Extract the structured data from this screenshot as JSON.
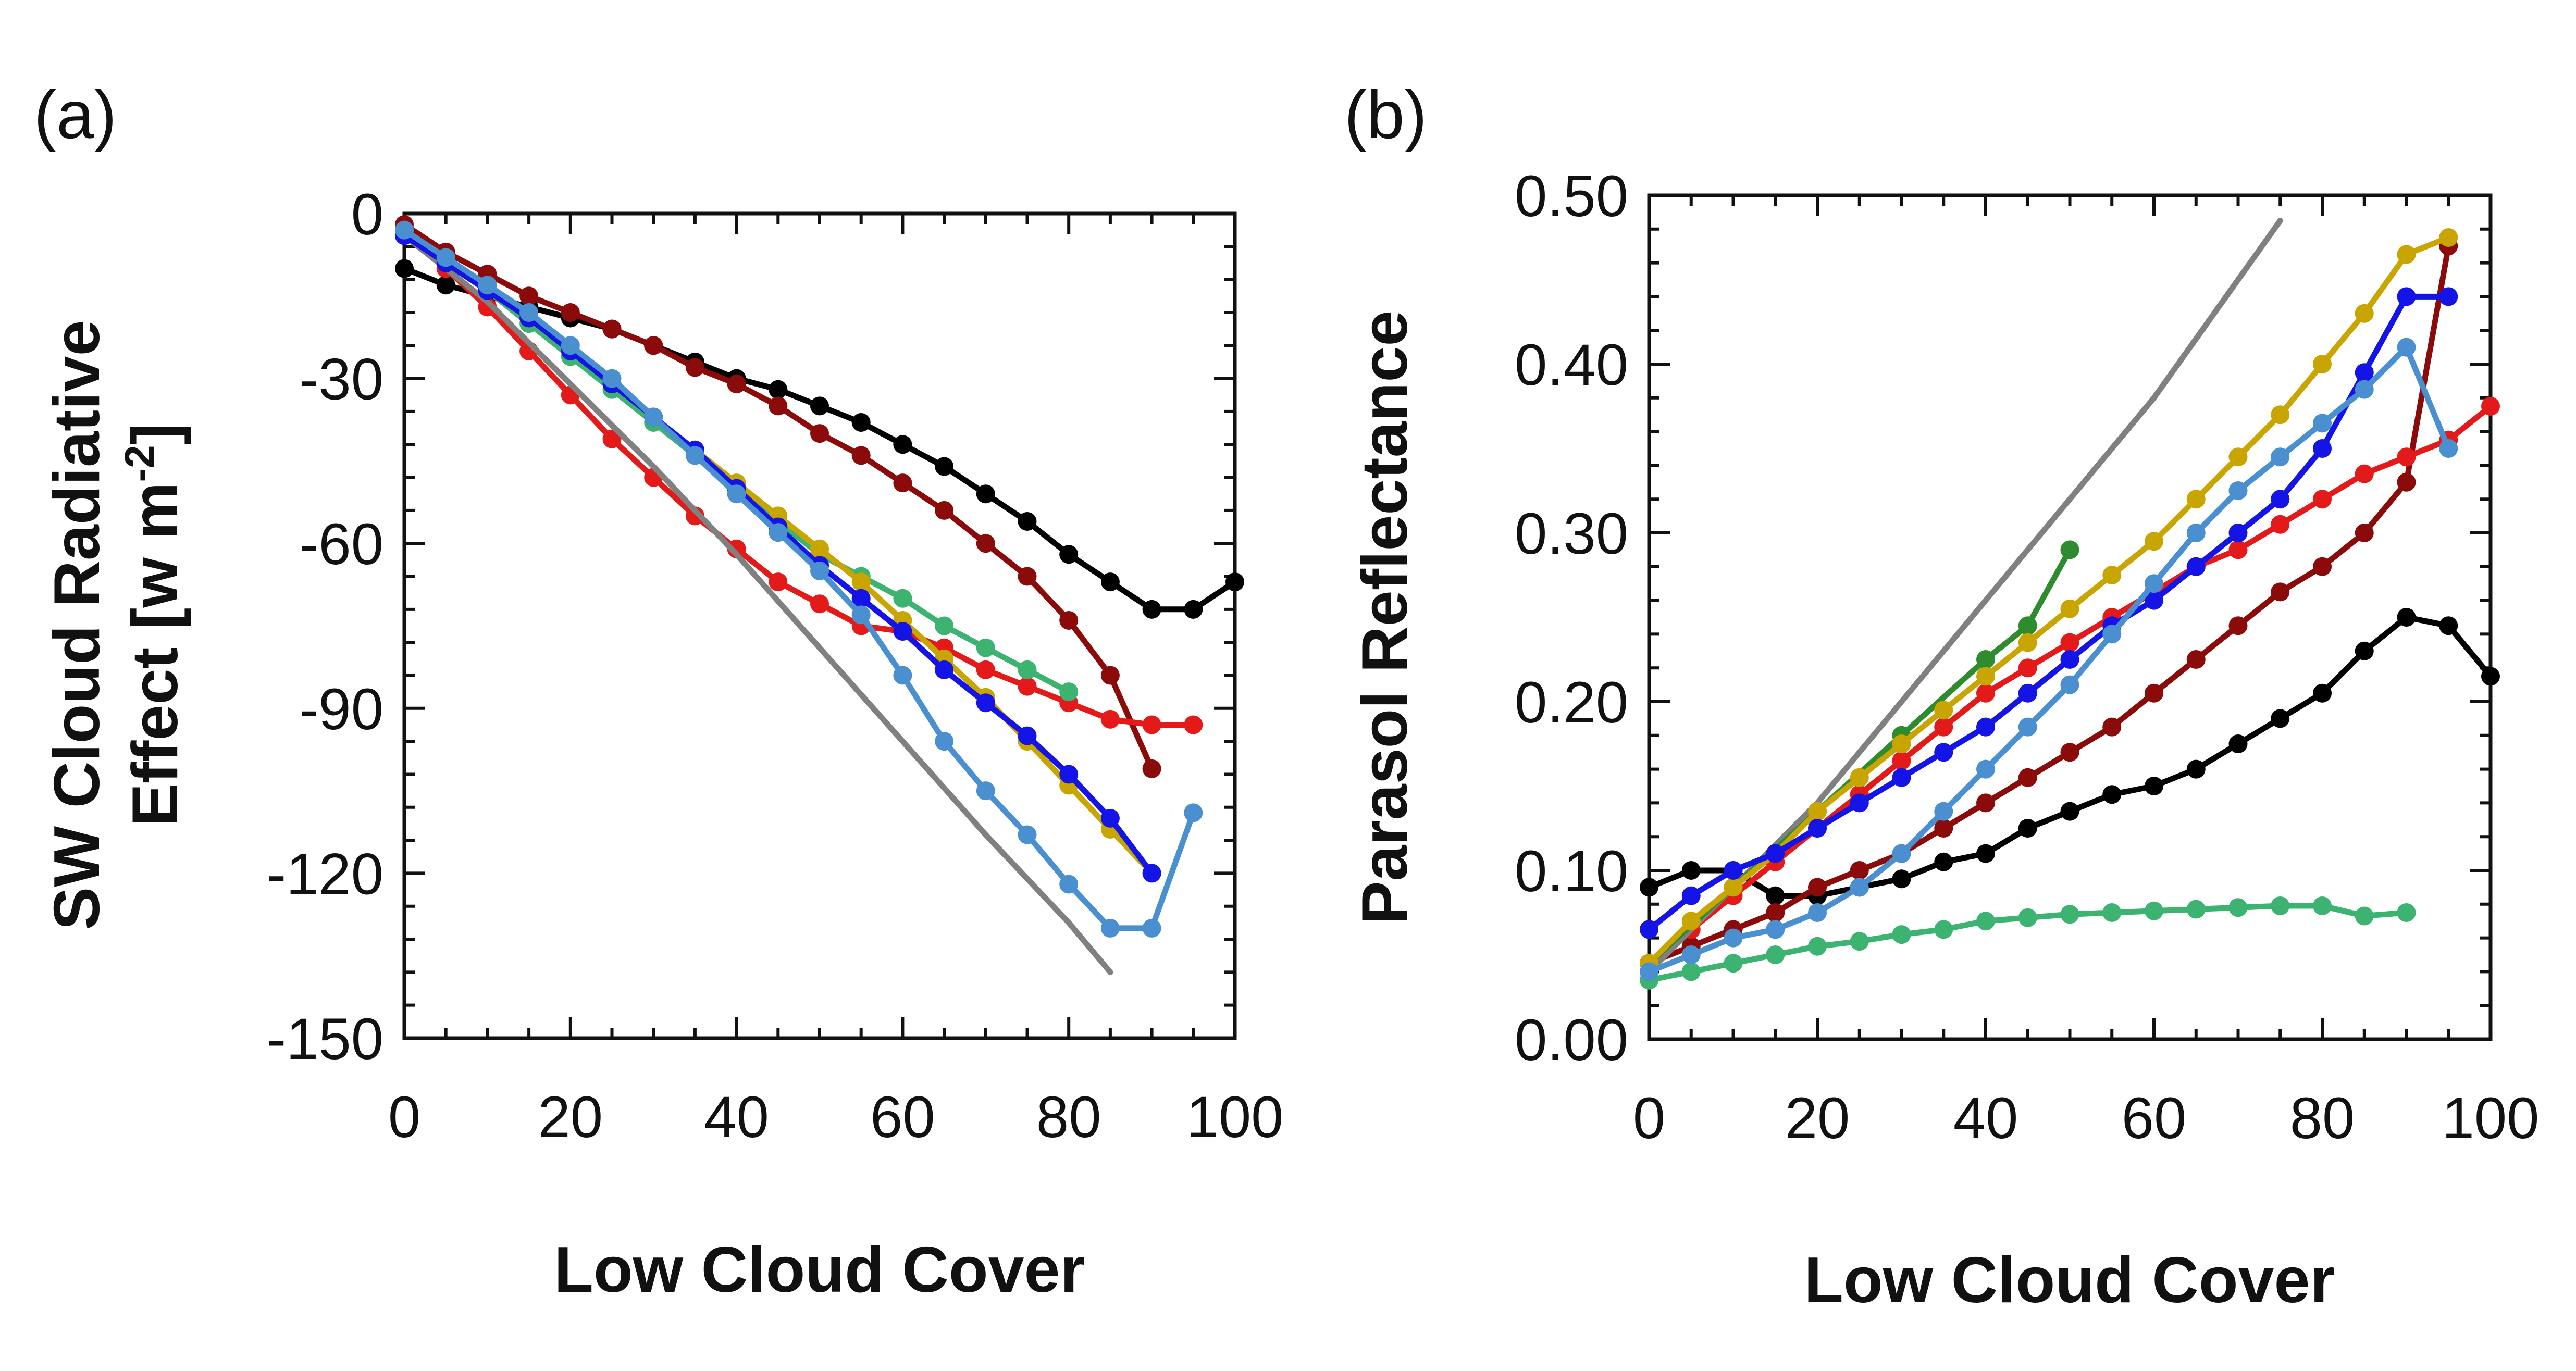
{
  "chart_data": [
    {
      "type": "line",
      "panel_label": "(a)",
      "xlabel": "Low Cloud Cover",
      "ylabel": "SW Cloud Radiative Effect [w m",
      "ylabel_sup": "-2",
      "ylabel_close": "]",
      "xlim": [
        0,
        100
      ],
      "ylim": [
        -150,
        0
      ],
      "xticks": [
        0,
        20,
        40,
        60,
        80,
        100
      ],
      "yticks": [
        0,
        -30,
        -60,
        -90,
        -120,
        -150
      ],
      "xtick_labels": [
        "0",
        "20",
        "40",
        "60",
        "80",
        "100"
      ],
      "ytick_labels": [
        "0",
        "-30",
        "-60",
        "-90",
        "-120",
        "-150"
      ],
      "grid": false,
      "series": [
        {
          "color": "#000000",
          "markers": true,
          "x": [
            0,
            5,
            10,
            15,
            20,
            25,
            30,
            35,
            40,
            45,
            50,
            55,
            60,
            65,
            70,
            75,
            80,
            85,
            90,
            95,
            100
          ],
          "y": [
            -10,
            -13,
            -15,
            -17,
            -19,
            -21,
            -24,
            -27,
            -30,
            -32,
            -35,
            -38,
            -42,
            -46,
            -51,
            -56,
            -62,
            -67,
            -72,
            -72,
            -67
          ]
        },
        {
          "color": "#8B0A0A",
          "markers": true,
          "x": [
            0,
            5,
            10,
            15,
            20,
            25,
            30,
            35,
            40,
            45,
            50,
            55,
            60,
            65,
            70,
            75,
            80,
            85,
            90
          ],
          "y": [
            -2,
            -7,
            -11,
            -15,
            -18,
            -21,
            -24,
            -28,
            -31,
            -35,
            -40,
            -44,
            -49,
            -54,
            -60,
            -66,
            -74,
            -84,
            -101
          ]
        },
        {
          "color": "#E41A1A",
          "markers": true,
          "x": [
            0,
            5,
            10,
            15,
            20,
            25,
            30,
            35,
            40,
            45,
            50,
            55,
            60,
            65,
            70,
            75,
            80,
            85,
            90,
            95
          ],
          "y": [
            -3,
            -10,
            -17,
            -25,
            -33,
            -41,
            -48,
            -55,
            -61,
            -67,
            -71,
            -75,
            -76,
            -79,
            -83,
            -86,
            -89,
            -92,
            -93,
            -93
          ]
        },
        {
          "color": "#808080",
          "markers": false,
          "x": [
            0,
            10,
            20,
            30,
            40,
            50,
            60,
            70,
            80,
            85
          ],
          "y": [
            -4,
            -16,
            -31,
            -46,
            -62,
            -79,
            -96,
            -113,
            -129,
            -138
          ]
        },
        {
          "color": "#3CB371",
          "markers": true,
          "x": [
            0,
            5,
            10,
            15,
            20,
            25,
            30,
            35,
            40,
            45,
            50,
            55,
            60,
            65,
            70,
            75,
            80
          ],
          "y": [
            -4,
            -9,
            -14,
            -20,
            -26,
            -32,
            -38,
            -44,
            -50,
            -56,
            -62,
            -66,
            -70,
            -75,
            -79,
            -83,
            -87
          ]
        },
        {
          "color": "#C8A500",
          "markers": true,
          "x": [
            0,
            5,
            10,
            15,
            20,
            25,
            30,
            35,
            40,
            45,
            50,
            55,
            60,
            65,
            70,
            75,
            80,
            85,
            90
          ],
          "y": [
            -4,
            -9,
            -14,
            -19,
            -25,
            -31,
            -37,
            -43,
            -49,
            -55,
            -61,
            -67,
            -74,
            -81,
            -88,
            -96,
            -104,
            -112,
            -120
          ]
        },
        {
          "color": "#1414E6",
          "markers": true,
          "x": [
            0,
            5,
            10,
            15,
            20,
            25,
            30,
            35,
            40,
            45,
            50,
            55,
            60,
            65,
            70,
            75,
            80,
            85,
            90
          ],
          "y": [
            -4,
            -9,
            -14,
            -19,
            -25,
            -31,
            -37,
            -43,
            -50,
            -57,
            -64,
            -70,
            -76,
            -83,
            -89,
            -95,
            -102,
            -110,
            -120
          ]
        },
        {
          "color": "#4A8FD0",
          "markers": true,
          "x": [
            0,
            5,
            10,
            15,
            20,
            25,
            30,
            35,
            40,
            45,
            50,
            55,
            60,
            65,
            70,
            75,
            80,
            85,
            90,
            95
          ],
          "y": [
            -3,
            -8,
            -13,
            -18,
            -24,
            -30,
            -37,
            -44,
            -51,
            -58,
            -65,
            -73,
            -84,
            -96,
            -105,
            -113,
            -122,
            -130,
            -130,
            -109
          ]
        }
      ]
    },
    {
      "type": "line",
      "panel_label": "(b)",
      "xlabel": "Low Cloud Cover",
      "ylabel": "Parasol Reflectance",
      "xlim": [
        0,
        100
      ],
      "ylim": [
        0,
        0.5
      ],
      "xticks": [
        0,
        20,
        40,
        60,
        80,
        100
      ],
      "yticks": [
        0,
        0.1,
        0.2,
        0.3,
        0.4,
        0.5
      ],
      "xtick_labels": [
        "0",
        "20",
        "40",
        "60",
        "80",
        "100"
      ],
      "ytick_labels": [
        "0.00",
        "0.10",
        "0.20",
        "0.30",
        "0.40",
        "0.50"
      ],
      "grid": false,
      "series": [
        {
          "color": "#000000",
          "markers": true,
          "x": [
            0,
            5,
            10,
            15,
            20,
            25,
            30,
            35,
            40,
            45,
            50,
            55,
            60,
            65,
            70,
            75,
            80,
            85,
            90,
            95,
            100
          ],
          "y": [
            0.09,
            0.1,
            0.1,
            0.085,
            0.085,
            0.09,
            0.095,
            0.105,
            0.11,
            0.125,
            0.135,
            0.145,
            0.15,
            0.16,
            0.175,
            0.19,
            0.205,
            0.23,
            0.25,
            0.245,
            0.215
          ]
        },
        {
          "color": "#8B0A0A",
          "markers": true,
          "x": [
            0,
            5,
            10,
            15,
            20,
            25,
            30,
            35,
            40,
            45,
            50,
            55,
            60,
            65,
            70,
            75,
            80,
            85,
            90,
            95
          ],
          "y": [
            0.045,
            0.055,
            0.065,
            0.075,
            0.09,
            0.1,
            0.11,
            0.125,
            0.14,
            0.155,
            0.17,
            0.185,
            0.205,
            0.225,
            0.245,
            0.265,
            0.28,
            0.3,
            0.33,
            0.47
          ]
        },
        {
          "color": "#E41A1A",
          "markers": true,
          "x": [
            0,
            5,
            10,
            15,
            20,
            25,
            30,
            35,
            40,
            45,
            50,
            55,
            60,
            65,
            70,
            75,
            80,
            85,
            90,
            95,
            100
          ],
          "y": [
            0.045,
            0.065,
            0.085,
            0.105,
            0.125,
            0.145,
            0.165,
            0.185,
            0.205,
            0.22,
            0.235,
            0.25,
            0.265,
            0.28,
            0.29,
            0.305,
            0.32,
            0.335,
            0.345,
            0.355,
            0.375
          ]
        },
        {
          "color": "#808080",
          "markers": false,
          "x": [
            0,
            10,
            20,
            30,
            40,
            50,
            60,
            70,
            75
          ],
          "y": [
            0.04,
            0.09,
            0.14,
            0.2,
            0.26,
            0.32,
            0.38,
            0.45,
            0.485
          ]
        },
        {
          "color": "#3CB371",
          "markers": true,
          "x": [
            0,
            5,
            10,
            15,
            20,
            25,
            30,
            35,
            40,
            45,
            50,
            55,
            60,
            65,
            70,
            75,
            80,
            85,
            90
          ],
          "y": [
            0.035,
            0.04,
            0.045,
            0.05,
            0.055,
            0.058,
            0.062,
            0.065,
            0.07,
            0.072,
            0.074,
            0.075,
            0.076,
            0.077,
            0.078,
            0.079,
            0.079,
            0.073,
            0.075
          ]
        },
        {
          "color": "#2E8B2E",
          "markers": true,
          "x": [
            0,
            10,
            20,
            30,
            40,
            45,
            50
          ],
          "y": [
            0.045,
            0.09,
            0.135,
            0.18,
            0.225,
            0.245,
            0.29
          ]
        },
        {
          "color": "#C8A500",
          "markers": true,
          "x": [
            0,
            5,
            10,
            15,
            20,
            25,
            30,
            35,
            40,
            45,
            50,
            55,
            60,
            65,
            70,
            75,
            80,
            85,
            90,
            95
          ],
          "y": [
            0.045,
            0.07,
            0.09,
            0.11,
            0.135,
            0.155,
            0.175,
            0.195,
            0.215,
            0.235,
            0.255,
            0.275,
            0.295,
            0.32,
            0.345,
            0.37,
            0.4,
            0.43,
            0.465,
            0.475
          ]
        },
        {
          "color": "#1414E6",
          "markers": true,
          "x": [
            0,
            5,
            10,
            15,
            20,
            25,
            30,
            35,
            40,
            45,
            50,
            55,
            60,
            65,
            70,
            75,
            80,
            85,
            90,
            95
          ],
          "y": [
            0.065,
            0.085,
            0.1,
            0.11,
            0.125,
            0.14,
            0.155,
            0.17,
            0.185,
            0.205,
            0.225,
            0.245,
            0.26,
            0.28,
            0.3,
            0.32,
            0.35,
            0.395,
            0.44,
            0.44
          ]
        },
        {
          "color": "#4A8FD0",
          "markers": true,
          "x": [
            0,
            5,
            10,
            15,
            20,
            25,
            30,
            35,
            40,
            45,
            50,
            55,
            60,
            65,
            70,
            75,
            80,
            85,
            90,
            95
          ],
          "y": [
            0.04,
            0.05,
            0.06,
            0.065,
            0.075,
            0.09,
            0.11,
            0.135,
            0.16,
            0.185,
            0.21,
            0.24,
            0.27,
            0.3,
            0.325,
            0.345,
            0.365,
            0.385,
            0.41,
            0.35
          ]
        }
      ]
    }
  ]
}
